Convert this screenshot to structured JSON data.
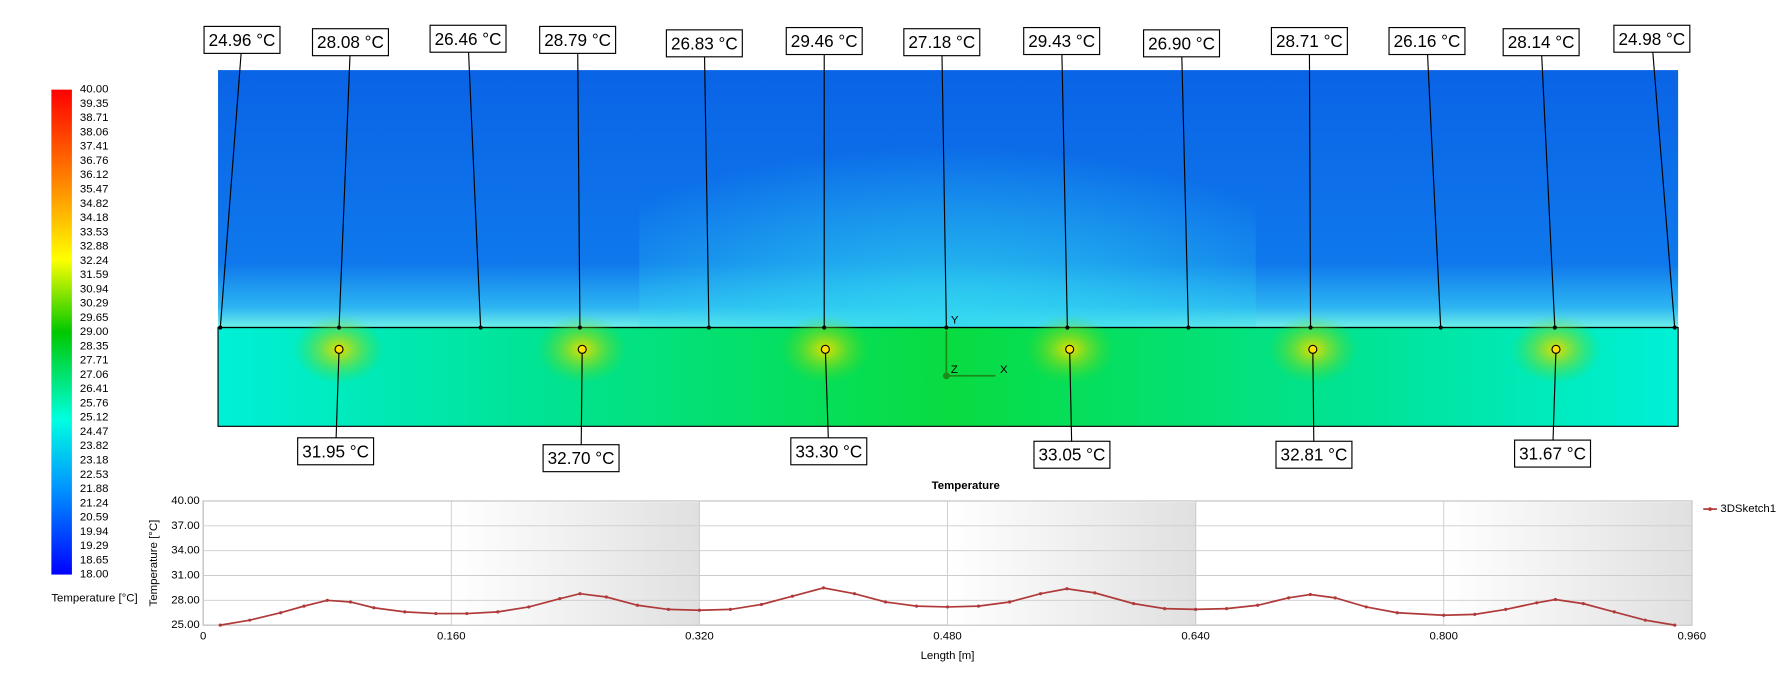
{
  "colorbar": {
    "title": "Temperature [°C]",
    "labels": [
      "40.00",
      "39.35",
      "38.71",
      "38.06",
      "37.41",
      "36.76",
      "36.12",
      "35.47",
      "34.82",
      "34.18",
      "33.53",
      "32.88",
      "32.24",
      "31.59",
      "30.94",
      "30.29",
      "29.65",
      "29.00",
      "28.35",
      "27.71",
      "27.06",
      "26.41",
      "25.76",
      "25.12",
      "24.47",
      "23.82",
      "23.18",
      "22.53",
      "21.88",
      "21.24",
      "20.59",
      "19.94",
      "19.29",
      "18.65",
      "18.00"
    ]
  },
  "probes": {
    "top": [
      "24.96 °C",
      "28.08 °C",
      "26.46 °C",
      "28.79 °C",
      "26.83 °C",
      "29.46 °C",
      "27.18 °C",
      "29.43 °C",
      "26.90 °C",
      "28.71 °C",
      "26.16 °C",
      "28.14 °C",
      "24.98 °C"
    ],
    "bottom": [
      "31.95 °C",
      "32.70 °C",
      "33.30 °C",
      "33.05 °C",
      "32.81 °C",
      "31.67 °C"
    ]
  },
  "axis_triad": {
    "y": "Y",
    "z": "Z",
    "x": "X"
  },
  "chart_data": {
    "type": "line",
    "title": "Temperature",
    "x_label": "Length [m]",
    "y_label": "Temperature [°C]",
    "x": [
      0.011,
      0.03,
      0.05,
      0.065,
      0.08,
      0.095,
      0.11,
      0.13,
      0.15,
      0.17,
      0.19,
      0.21,
      0.23,
      0.243,
      0.26,
      0.28,
      0.3,
      0.32,
      0.34,
      0.36,
      0.38,
      0.4,
      0.42,
      0.44,
      0.46,
      0.48,
      0.5,
      0.52,
      0.54,
      0.557,
      0.575,
      0.6,
      0.62,
      0.64,
      0.66,
      0.68,
      0.7,
      0.714,
      0.73,
      0.75,
      0.77,
      0.8,
      0.82,
      0.84,
      0.86,
      0.872,
      0.89,
      0.91,
      0.93,
      0.949
    ],
    "series": [
      {
        "name": "3DSketch1",
        "color": "#b03a3a",
        "values": [
          25.0,
          25.6,
          26.5,
          27.3,
          28.0,
          27.8,
          27.1,
          26.6,
          26.4,
          26.4,
          26.6,
          27.2,
          28.2,
          28.8,
          28.4,
          27.4,
          26.9,
          26.8,
          26.9,
          27.5,
          28.5,
          29.5,
          28.8,
          27.8,
          27.3,
          27.2,
          27.3,
          27.8,
          28.8,
          29.4,
          28.9,
          27.6,
          27.0,
          26.9,
          27.0,
          27.4,
          28.3,
          28.7,
          28.3,
          27.2,
          26.5,
          26.2,
          26.3,
          26.9,
          27.7,
          28.1,
          27.6,
          26.6,
          25.6,
          25.0
        ]
      }
    ],
    "xlim": [
      0,
      0.96
    ],
    "xticks": [
      0,
      {
        "value": 0.16,
        "label": "0.160"
      },
      {
        "value": 0.32,
        "label": "0.320"
      },
      {
        "value": 0.48,
        "label": "0.480"
      },
      {
        "value": 0.64,
        "label": "0.640"
      },
      {
        "value": 0.8,
        "label": "0.800"
      },
      {
        "value": 0.96,
        "label": "0.960"
      }
    ],
    "ylim": [
      25,
      40
    ],
    "yticks": [
      {
        "value": 25,
        "label": "25.00"
      },
      {
        "value": 28,
        "label": "28.00"
      },
      {
        "value": 31,
        "label": "31.00"
      },
      {
        "value": 34,
        "label": "34.00"
      },
      {
        "value": 37,
        "label": "37.00"
      },
      {
        "value": 40,
        "label": "40.00"
      }
    ],
    "grid": true,
    "legend": "right"
  }
}
